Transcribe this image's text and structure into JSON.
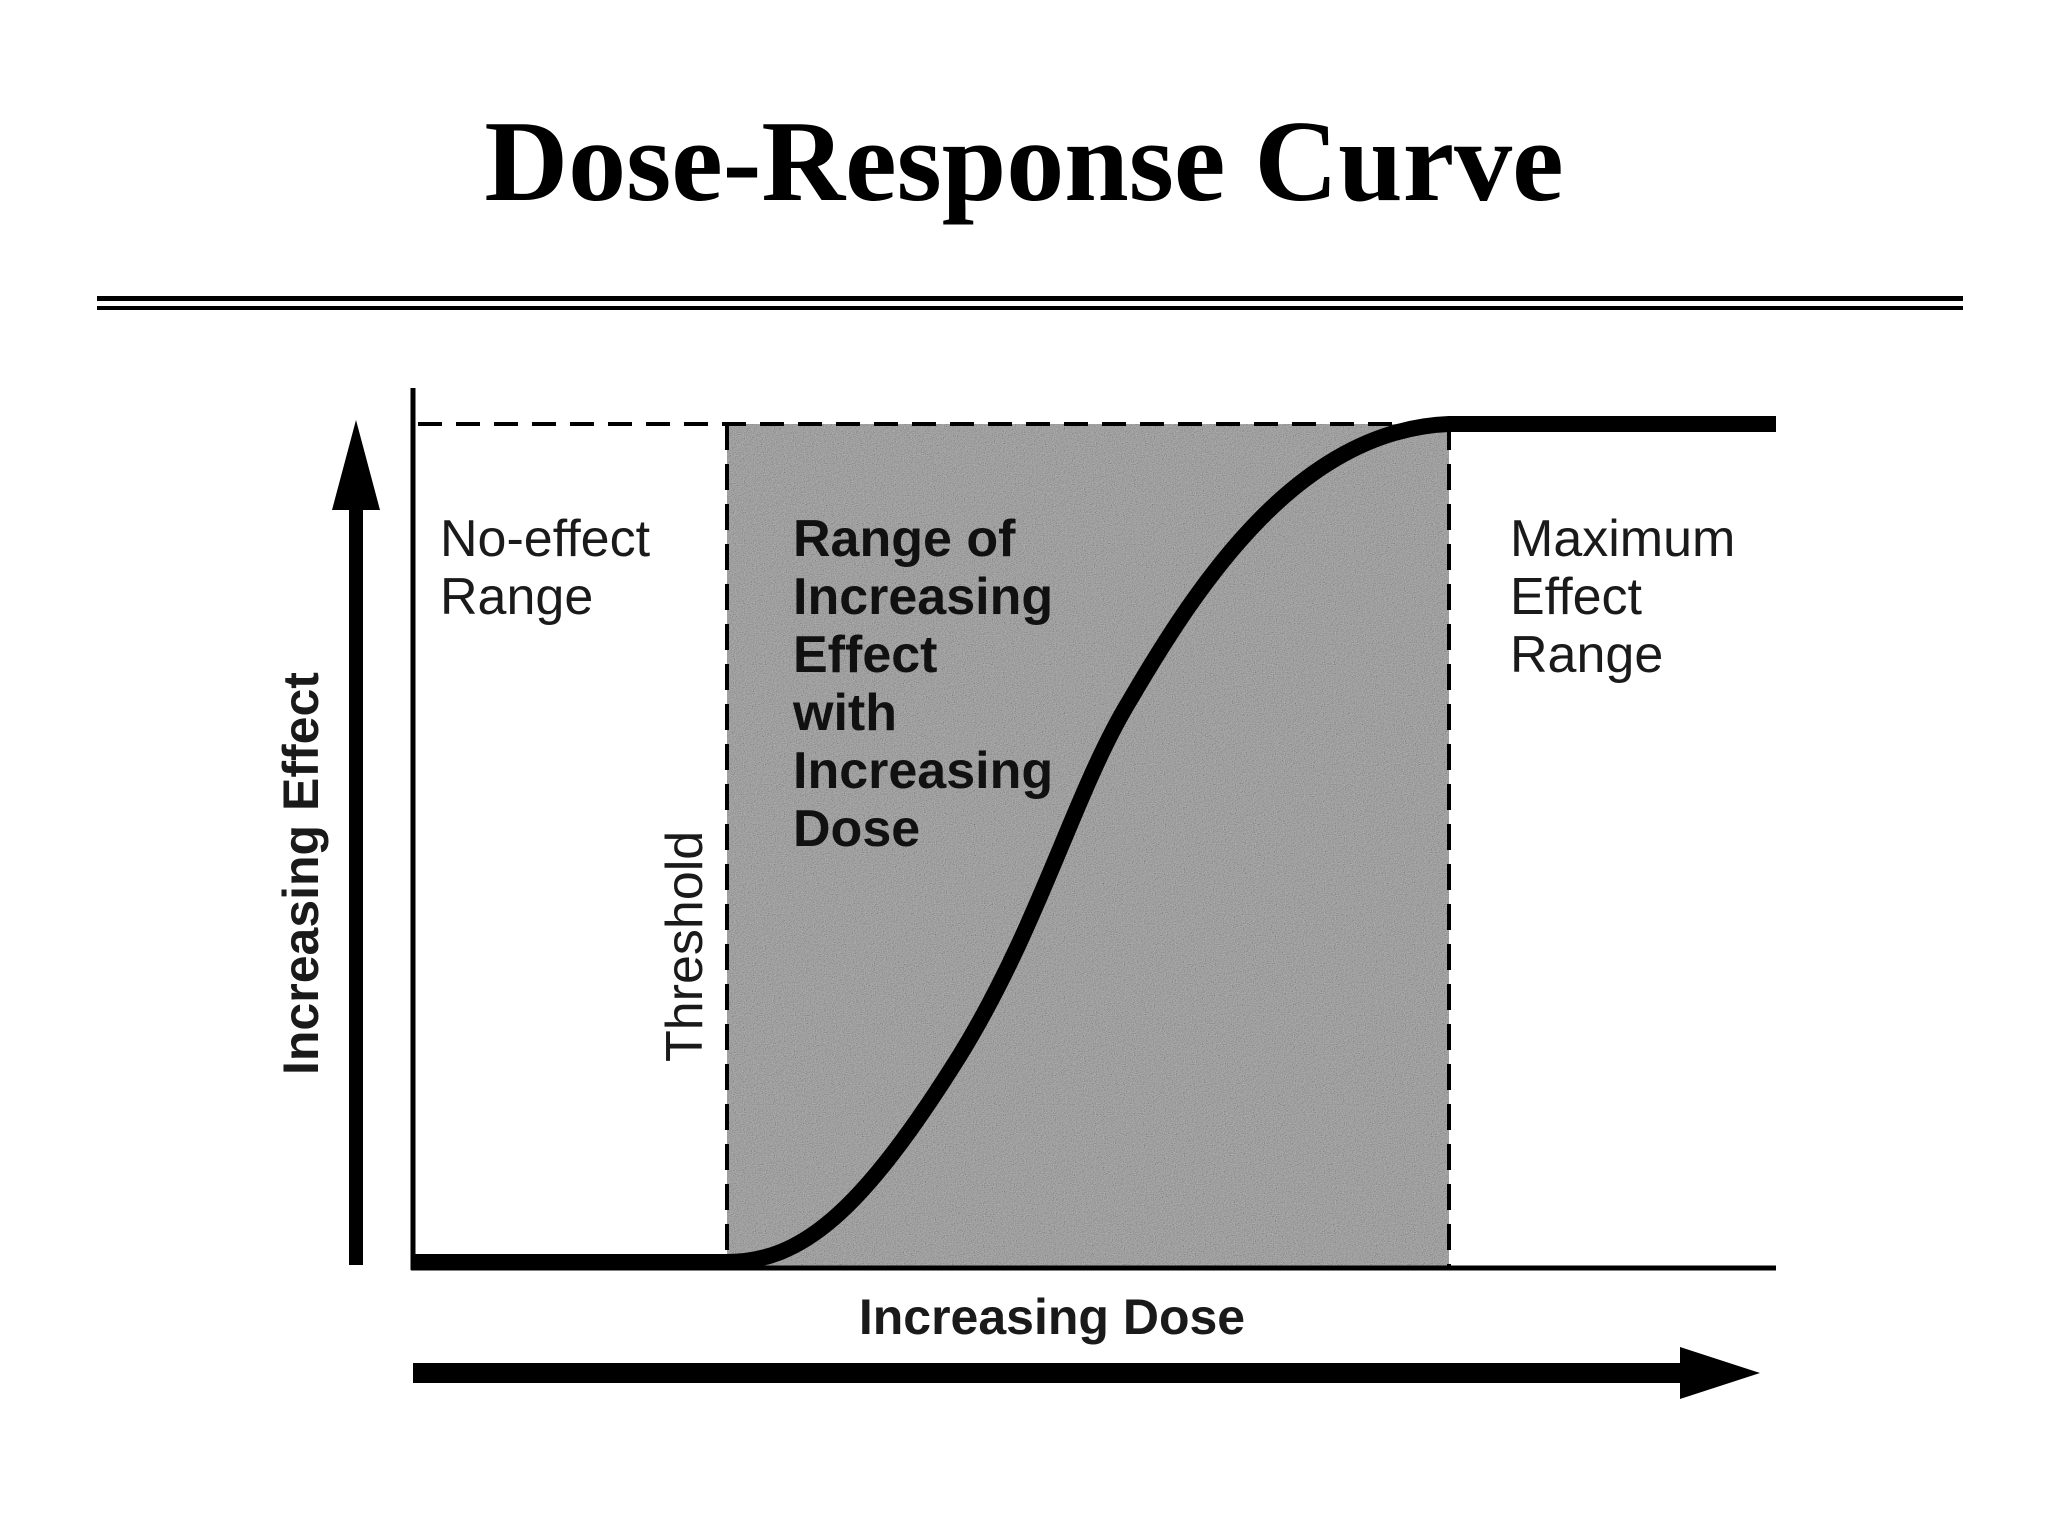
{
  "title": "Dose-Response Curve",
  "labels": {
    "no_effect": [
      "No-effect",
      "Range"
    ],
    "increasing_range": [
      "Range of",
      "Increasing",
      "Effect",
      "with",
      "Increasing",
      "Dose"
    ],
    "maximum": [
      "Maximum",
      "Effect",
      "Range"
    ],
    "threshold": "Threshold",
    "y_axis": "Increasing Effect",
    "x_axis": "Increasing Dose"
  },
  "colors": {
    "ink": "#000000",
    "shaded_region": "#b5b5b5"
  }
}
